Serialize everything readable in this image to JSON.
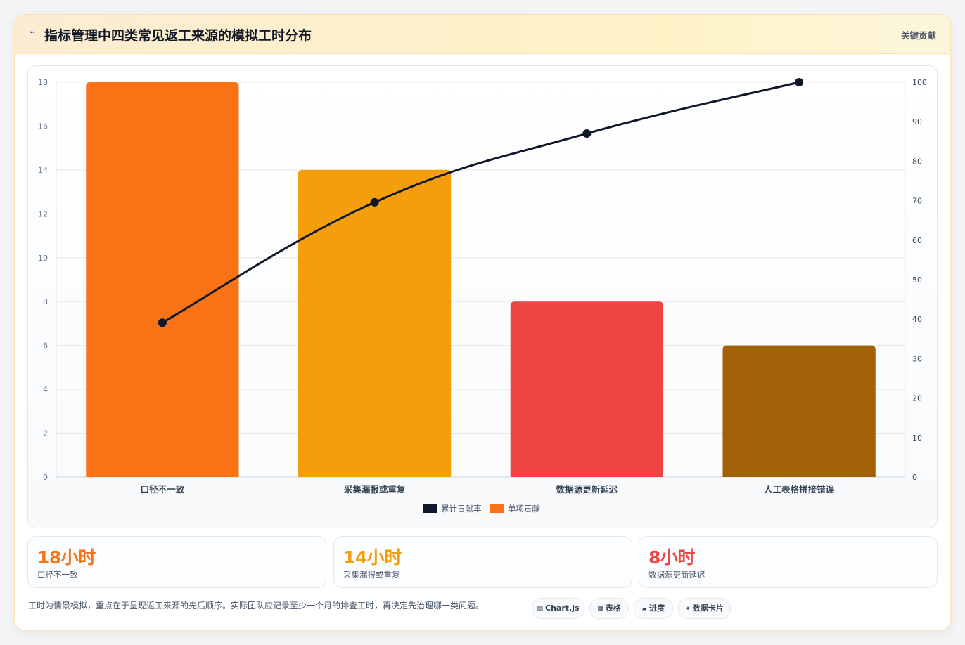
{
  "header": {
    "icon": "bolt-icon",
    "title": "指标管理中四类常见返工来源的模拟工时分布",
    "tag": "关键贡献"
  },
  "chart_data": {
    "type": "bar",
    "categories": [
      "口径不一致",
      "采集漏报或重复",
      "数据源更新延迟",
      "人工表格拼接错误"
    ],
    "series": [
      {
        "name": "单项贡献",
        "type": "bar",
        "axis": "left",
        "values": [
          18,
          14,
          8,
          6
        ],
        "colors": [
          "#f97316",
          "#f59e0b",
          "#ef4444",
          "#a16207"
        ]
      },
      {
        "name": "累计贡献率",
        "type": "line",
        "axis": "right",
        "values": [
          39.1,
          69.6,
          87.0,
          100
        ],
        "color": "#0f172a"
      }
    ],
    "y_left": {
      "range": [
        0,
        18
      ],
      "ticks": [
        0,
        2,
        4,
        6,
        8,
        10,
        12,
        14,
        16,
        18
      ]
    },
    "y_right": {
      "range": [
        0,
        100
      ],
      "ticks": [
        0,
        10,
        20,
        30,
        40,
        50,
        60,
        70,
        80,
        90,
        100
      ]
    },
    "grid": true,
    "legend": {
      "position": "bottom",
      "order": [
        "累计贡献率",
        "单项贡献"
      ]
    }
  },
  "stats": [
    {
      "value": "18小时",
      "label": "口径不一致",
      "color": "#f97316"
    },
    {
      "value": "14小时",
      "label": "采集漏报或重复",
      "color": "#f59e0b"
    },
    {
      "value": "8小时",
      "label": "数据源更新延迟",
      "color": "#ef4444"
    }
  ],
  "footer": {
    "note": "工时为情景模拟，重点在于呈现返工来源的先后顺序。实际团队应记录至少一个月的排查工时，再决定先治理哪一类问题。",
    "pills": [
      {
        "label": "Chart.js",
        "icon": "chart-icon",
        "glyph": "▤"
      },
      {
        "label": "表格",
        "icon": "table-icon",
        "glyph": "▦"
      },
      {
        "label": "进度",
        "icon": "progress-icon",
        "glyph": "▰"
      },
      {
        "label": "数据卡片",
        "icon": "card-icon",
        "glyph": "✦"
      }
    ]
  }
}
